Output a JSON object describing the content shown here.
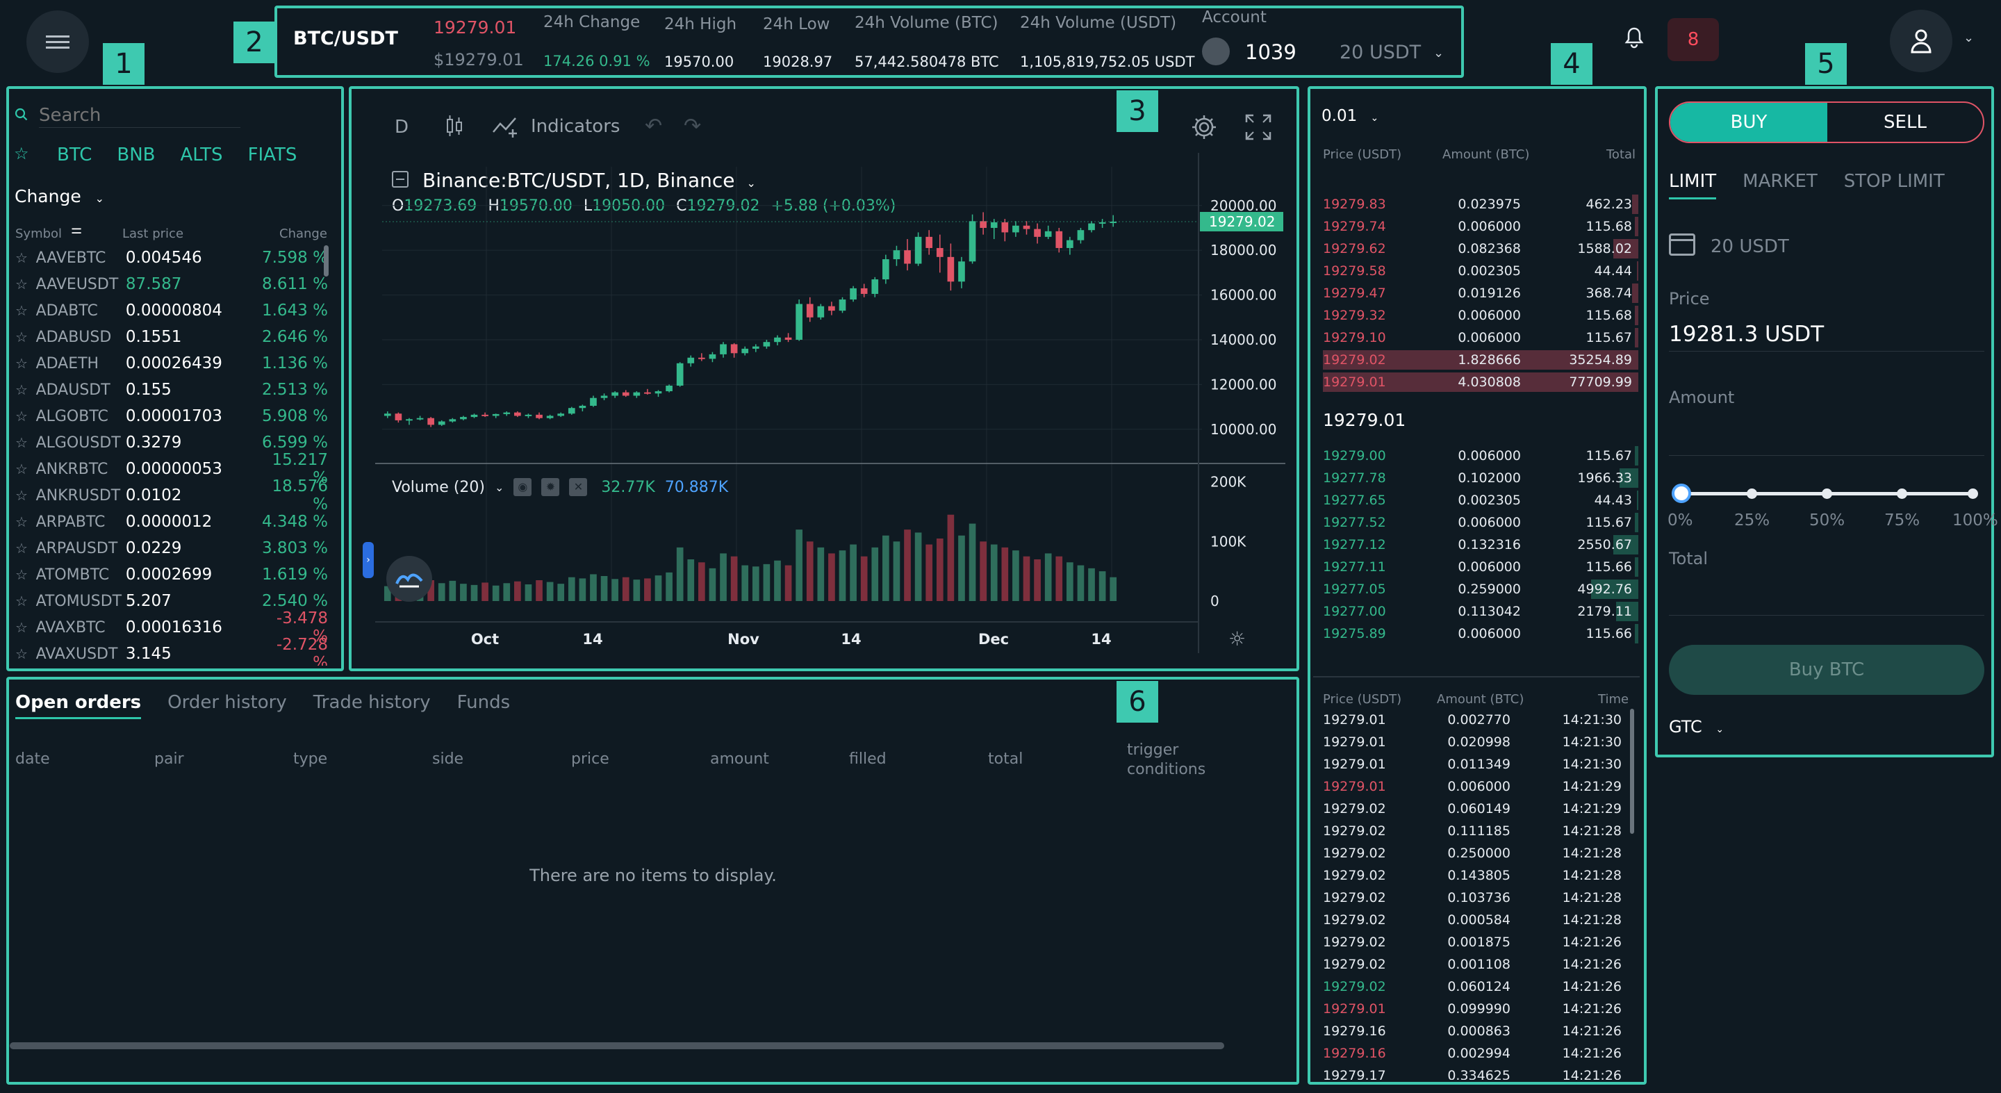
{
  "header": {
    "pair": "BTC/USDT",
    "price": "19279.01",
    "price_usd": "$19279.01",
    "change_label": "24h Change",
    "change_value": "174.26 0.91 %",
    "high_label": "24h High",
    "high_value": "19570.00",
    "low_label": "24h Low",
    "low_value": "19028.97",
    "volbtc_label": "24h Volume (BTC)",
    "volbtc_value": "57,442.580478 BTC",
    "volusdt_label": "24h Volume (USDT)",
    "volusdt_value": "1,105,819,752.05 USDT",
    "account_label": "Account",
    "account_id": "1039",
    "account_balance": "20 USDT",
    "notif_count": "8"
  },
  "badges": [
    "1",
    "2",
    "3",
    "4",
    "5",
    "6"
  ],
  "market": {
    "search_placeholder": "Search",
    "tabs": [
      "BTC",
      "BNB",
      "ALTS",
      "FIATS"
    ],
    "sort_label": "Change",
    "col_symbol": "Symbol",
    "col_last": "Last price",
    "col_change": "Change",
    "rows": [
      {
        "sym": "AAVEBTC",
        "lp": "0.004546",
        "ch": "7.598 %",
        "up": true,
        "hl": false
      },
      {
        "sym": "AAVEUSDT",
        "lp": "87.587",
        "ch": "8.611 %",
        "up": true,
        "hl": true
      },
      {
        "sym": "ADABTC",
        "lp": "0.00000804",
        "ch": "1.643 %",
        "up": true,
        "hl": false
      },
      {
        "sym": "ADABUSD",
        "lp": "0.1551",
        "ch": "2.646 %",
        "up": true,
        "hl": false
      },
      {
        "sym": "ADAETH",
        "lp": "0.00026439",
        "ch": "1.136 %",
        "up": true,
        "hl": false
      },
      {
        "sym": "ADAUSDT",
        "lp": "0.155",
        "ch": "2.513 %",
        "up": true,
        "hl": false
      },
      {
        "sym": "ALGOBTC",
        "lp": "0.00001703",
        "ch": "5.908 %",
        "up": true,
        "hl": false
      },
      {
        "sym": "ALGOUSDT",
        "lp": "0.3279",
        "ch": "6.599 %",
        "up": true,
        "hl": false
      },
      {
        "sym": "ANKRBTC",
        "lp": "0.00000053",
        "ch": "15.217 %",
        "up": true,
        "hl": false
      },
      {
        "sym": "ANKRUSDT",
        "lp": "0.0102",
        "ch": "18.576 %",
        "up": true,
        "hl": false
      },
      {
        "sym": "ARPABTC",
        "lp": "0.0000012",
        "ch": "4.348 %",
        "up": true,
        "hl": false
      },
      {
        "sym": "ARPAUSDT",
        "lp": "0.0229",
        "ch": "3.803 %",
        "up": true,
        "hl": false
      },
      {
        "sym": "ATOMBTC",
        "lp": "0.0002699",
        "ch": "1.619 %",
        "up": true,
        "hl": false
      },
      {
        "sym": "ATOMUSDT",
        "lp": "5.207",
        "ch": "2.540 %",
        "up": true,
        "hl": false
      },
      {
        "sym": "AVAXBTC",
        "lp": "0.00016316",
        "ch": "-3.478 %",
        "up": false,
        "hl": false
      },
      {
        "sym": "AVAXUSDT",
        "lp": "3.145",
        "ch": "-2.728 %",
        "up": false,
        "hl": false
      }
    ]
  },
  "chart": {
    "interval": "D",
    "indicators_label": "Indicators",
    "symbol_title": "Binance:BTC/USDT, 1D, Binance",
    "ohlc": {
      "o": "19273.69",
      "h": "19570.00",
      "l": "19050.00",
      "c": "19279.02",
      "chg": "+5.88 (+0.03%)"
    },
    "last_price_tag": "19279.02",
    "volume_label": "Volume (20)",
    "volume_v1": "32.77K",
    "volume_v2": "70.887K",
    "colors": {
      "up": "#34b98c",
      "down": "#e05466",
      "vol_up": "#2f6e5c",
      "vol_down": "#7e2f3d"
    }
  },
  "chart_data": {
    "type": "line",
    "title": "Binance:BTC/USDT, 1D, Binance",
    "price_axis": {
      "ticks": [
        "20000.00",
        "18000.00",
        "16000.00",
        "14000.00",
        "12000.00",
        "10000.00"
      ],
      "ylim": [
        9000,
        20800
      ]
    },
    "volume_axis": {
      "ticks": [
        "200K",
        "100K",
        "0"
      ],
      "ylim": [
        0,
        210000
      ]
    },
    "x_ticks": [
      "Oct",
      "14",
      "Nov",
      "14",
      "Dec",
      "14"
    ],
    "candles": [
      [
        10600,
        10800,
        10500,
        10700
      ],
      [
        10700,
        10750,
        10300,
        10400
      ],
      [
        10400,
        10500,
        10200,
        10450
      ],
      [
        10450,
        10600,
        10400,
        10500
      ],
      [
        10500,
        10550,
        10100,
        10200
      ],
      [
        10200,
        10400,
        10150,
        10350
      ],
      [
        10350,
        10500,
        10300,
        10450
      ],
      [
        10450,
        10600,
        10400,
        10550
      ],
      [
        10550,
        10700,
        10500,
        10650
      ],
      [
        10650,
        10750,
        10550,
        10600
      ],
      [
        10600,
        10700,
        10500,
        10680
      ],
      [
        10680,
        10800,
        10600,
        10750
      ],
      [
        10750,
        10800,
        10550,
        10600
      ],
      [
        10600,
        10700,
        10500,
        10650
      ],
      [
        10650,
        10750,
        10450,
        10500
      ],
      [
        10500,
        10650,
        10450,
        10600
      ],
      [
        10600,
        10750,
        10550,
        10700
      ],
      [
        10700,
        11000,
        10650,
        10950
      ],
      [
        10950,
        11100,
        10800,
        11050
      ],
      [
        11050,
        11500,
        11000,
        11400
      ],
      [
        11400,
        11600,
        11300,
        11500
      ],
      [
        11500,
        11700,
        11400,
        11650
      ],
      [
        11650,
        11750,
        11450,
        11500
      ],
      [
        11500,
        11700,
        11400,
        11650
      ],
      [
        11650,
        11800,
        11550,
        11600
      ],
      [
        11600,
        11750,
        11450,
        11700
      ],
      [
        11700,
        12000,
        11650,
        11950
      ],
      [
        11950,
        13000,
        11900,
        12950
      ],
      [
        12950,
        13300,
        12800,
        13200
      ],
      [
        13200,
        13400,
        13050,
        13150
      ],
      [
        13150,
        13450,
        13000,
        13350
      ],
      [
        13350,
        13900,
        13200,
        13800
      ],
      [
        13800,
        13850,
        13200,
        13400
      ],
      [
        13400,
        13700,
        13300,
        13600
      ],
      [
        13600,
        13800,
        13450,
        13700
      ],
      [
        13700,
        14000,
        13600,
        13900
      ],
      [
        13900,
        14200,
        13750,
        14100
      ],
      [
        14100,
        14300,
        13900,
        14000
      ],
      [
        14000,
        15800,
        13950,
        15600
      ],
      [
        15600,
        15900,
        14800,
        15000
      ],
      [
        15000,
        15600,
        14900,
        15500
      ],
      [
        15500,
        15700,
        15100,
        15300
      ],
      [
        15300,
        15900,
        15200,
        15800
      ],
      [
        15800,
        16400,
        15700,
        16300
      ],
      [
        16300,
        16500,
        15900,
        16050
      ],
      [
        16050,
        16800,
        15900,
        16700
      ],
      [
        16700,
        17800,
        16500,
        17600
      ],
      [
        17600,
        18200,
        17300,
        18000
      ],
      [
        18000,
        18500,
        17100,
        17400
      ],
      [
        17400,
        18800,
        17300,
        18600
      ],
      [
        18600,
        18900,
        17800,
        18100
      ],
      [
        18100,
        18700,
        17000,
        17700
      ],
      [
        17700,
        18300,
        16200,
        16600
      ],
      [
        16600,
        17700,
        16300,
        17500
      ],
      [
        17500,
        19600,
        17400,
        19300
      ],
      [
        19300,
        19700,
        18700,
        19000
      ],
      [
        19000,
        19400,
        18500,
        19250
      ],
      [
        19250,
        19400,
        18400,
        18800
      ],
      [
        18800,
        19300,
        18600,
        19100
      ],
      [
        19100,
        19300,
        18700,
        18950
      ],
      [
        18950,
        19200,
        18300,
        18600
      ],
      [
        18600,
        19100,
        18500,
        18850
      ],
      [
        18850,
        19000,
        17900,
        18100
      ],
      [
        18100,
        18600,
        17800,
        18450
      ],
      [
        18450,
        19000,
        18300,
        18900
      ],
      [
        18900,
        19300,
        18800,
        19200
      ],
      [
        19200,
        19400,
        19000,
        19250
      ],
      [
        19250,
        19570,
        19050,
        19279
      ]
    ],
    "volumes": [
      25000,
      30000,
      28000,
      32000,
      35000,
      30000,
      34000,
      29000,
      27000,
      31000,
      26000,
      30000,
      33000,
      28000,
      35000,
      32000,
      29000,
      40000,
      38000,
      45000,
      42000,
      37000,
      40000,
      36000,
      38000,
      43000,
      48000,
      90000,
      70000,
      65000,
      55000,
      80000,
      75000,
      60000,
      58000,
      62000,
      68000,
      60000,
      120000,
      100000,
      90000,
      80000,
      85000,
      95000,
      75000,
      90000,
      110000,
      100000,
      120000,
      115000,
      95000,
      105000,
      145000,
      110000,
      130000,
      100000,
      95000,
      90000,
      85000,
      75000,
      70000,
      80000,
      75000,
      65000,
      60000,
      55000,
      50000,
      40000
    ]
  },
  "orderbook": {
    "precision": "0.01",
    "col_price": "Price (USDT)",
    "col_amount": "Amount (BTC)",
    "col_total": "Total",
    "asks": [
      {
        "p": "19279.83",
        "a": "0.023975",
        "t": "462.23",
        "d": 0.02
      },
      {
        "p": "19279.74",
        "a": "0.006000",
        "t": "115.68",
        "d": 0.01
      },
      {
        "p": "19279.62",
        "a": "0.082368",
        "t": "1588.02",
        "d": 0.08
      },
      {
        "p": "19279.58",
        "a": "0.002305",
        "t": "44.44",
        "d": 0.005
      },
      {
        "p": "19279.47",
        "a": "0.019126",
        "t": "368.74",
        "d": 0.02
      },
      {
        "p": "19279.32",
        "a": "0.006000",
        "t": "115.68",
        "d": 0.01
      },
      {
        "p": "19279.10",
        "a": "0.006000",
        "t": "115.67",
        "d": 0.01
      },
      {
        "p": "19279.02",
        "a": "1.828666",
        "t": "35254.89",
        "d": 1
      },
      {
        "p": "19279.01",
        "a": "4.030808",
        "t": "77709.99",
        "d": 1
      }
    ],
    "mid_price": "19279.01",
    "bids": [
      {
        "p": "19279.00",
        "a": "0.006000",
        "t": "115.67",
        "d": 0.01
      },
      {
        "p": "19277.78",
        "a": "0.102000",
        "t": "1966.33",
        "d": 0.06
      },
      {
        "p": "19277.65",
        "a": "0.002305",
        "t": "44.43",
        "d": 0.005
      },
      {
        "p": "19277.52",
        "a": "0.006000",
        "t": "115.67",
        "d": 0.01
      },
      {
        "p": "19277.12",
        "a": "0.132316",
        "t": "2550.67",
        "d": 0.08
      },
      {
        "p": "19277.11",
        "a": "0.006000",
        "t": "115.66",
        "d": 0.01
      },
      {
        "p": "19277.05",
        "a": "0.259000",
        "t": "4992.76",
        "d": 0.15
      },
      {
        "p": "19277.00",
        "a": "0.113042",
        "t": "2179.11",
        "d": 0.07
      },
      {
        "p": "19275.89",
        "a": "0.006000",
        "t": "115.66",
        "d": 0.01
      }
    ]
  },
  "trades": {
    "col_price": "Price (USDT)",
    "col_amount": "Amount (BTC)",
    "col_time": "Time",
    "rows": [
      {
        "p": "19279.01",
        "a": "0.002770",
        "t": "14:21:30",
        "c": "w"
      },
      {
        "p": "19279.01",
        "a": "0.020998",
        "t": "14:21:30",
        "c": "w"
      },
      {
        "p": "19279.01",
        "a": "0.011349",
        "t": "14:21:30",
        "c": "w"
      },
      {
        "p": "19279.01",
        "a": "0.006000",
        "t": "14:21:29",
        "c": "r"
      },
      {
        "p": "19279.02",
        "a": "0.060149",
        "t": "14:21:29",
        "c": "w"
      },
      {
        "p": "19279.02",
        "a": "0.111185",
        "t": "14:21:28",
        "c": "w"
      },
      {
        "p": "19279.02",
        "a": "0.250000",
        "t": "14:21:28",
        "c": "w"
      },
      {
        "p": "19279.02",
        "a": "0.143805",
        "t": "14:21:28",
        "c": "w"
      },
      {
        "p": "19279.02",
        "a": "0.103736",
        "t": "14:21:28",
        "c": "w"
      },
      {
        "p": "19279.02",
        "a": "0.000584",
        "t": "14:21:28",
        "c": "w"
      },
      {
        "p": "19279.02",
        "a": "0.001875",
        "t": "14:21:26",
        "c": "w"
      },
      {
        "p": "19279.02",
        "a": "0.001108",
        "t": "14:21:26",
        "c": "w"
      },
      {
        "p": "19279.02",
        "a": "0.060124",
        "t": "14:21:26",
        "c": "g"
      },
      {
        "p": "19279.01",
        "a": "0.099990",
        "t": "14:21:26",
        "c": "r"
      },
      {
        "p": "19279.16",
        "a": "0.000863",
        "t": "14:21:26",
        "c": "w"
      },
      {
        "p": "19279.16",
        "a": "0.002994",
        "t": "14:21:26",
        "c": "r"
      },
      {
        "p": "19279.17",
        "a": "0.334625",
        "t": "14:21:26",
        "c": "w"
      }
    ]
  },
  "trade_form": {
    "buy_label": "BUY",
    "sell_label": "SELL",
    "order_types": [
      "LIMIT",
      "MARKET",
      "STOP LIMIT"
    ],
    "balance": "20 USDT",
    "price_label": "Price",
    "price_value": "19281.3 USDT",
    "amount_label": "Amount",
    "slider_ticks": [
      "0%",
      "25%",
      "50%",
      "75%",
      "100%"
    ],
    "slider_value": 0,
    "total_label": "Total",
    "submit_label": "Buy BTC",
    "tif": "GTC"
  },
  "orders": {
    "tabs": [
      "Open orders",
      "Order history",
      "Trade history",
      "Funds"
    ],
    "columns": [
      "date",
      "pair",
      "type",
      "side",
      "price",
      "amount",
      "filled",
      "total",
      "trigger conditions"
    ],
    "empty_text": "There are no items to display."
  }
}
